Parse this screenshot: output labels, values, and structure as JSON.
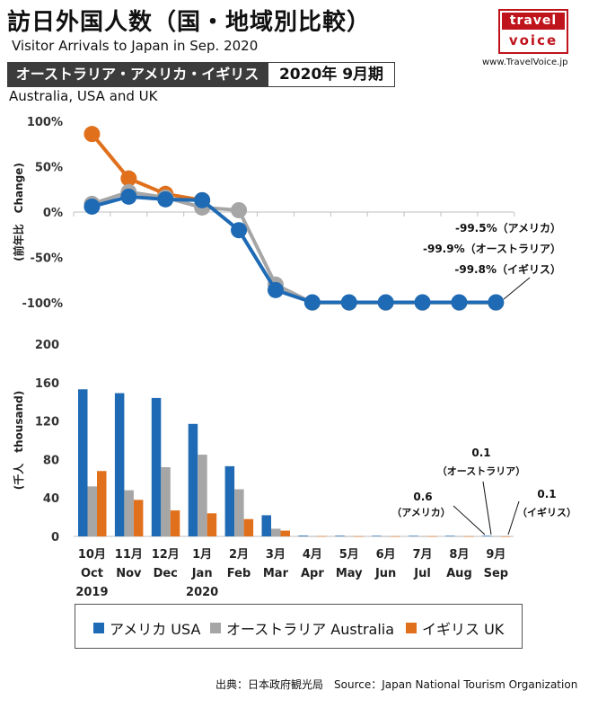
{
  "header": {
    "title": "訪日外国人数（国・地域別比較）",
    "subtitle": "Visitor Arrivals to Japan in Sep. 2020",
    "banner": "オーストラリア・アメリカ・イギリス",
    "period": "2020年 9月期",
    "region_en": "Australia, USA and UK",
    "logo_top": "travel",
    "logo_bottom": "voice",
    "website": "www.TravelVoice.jp"
  },
  "source": "出典：日本政府観光局　Source：Japan National Tourism Organization",
  "colors": {
    "usa": "#1e6ab4",
    "australia": "#a6a6a6",
    "uk": "#e0701c"
  },
  "chart_data": [
    {
      "type": "line",
      "ylabel": "(前年比　Change)",
      "ylim": [
        -100,
        100
      ],
      "yticks": [
        "100%",
        "50%",
        "0%",
        "-50%",
        "-100%"
      ],
      "x": [
        "10月 Oct 2019",
        "11月 Nov",
        "12月 Dec",
        "1月 Jan 2020",
        "2月 Feb",
        "3月 Mar",
        "4月 Apr",
        "5月 May",
        "6月 Jun",
        "7月 Jul",
        "8月 Aug",
        "9月 Sep"
      ],
      "series": [
        {
          "name": "イギリス UK",
          "key": "uk",
          "values": [
            86,
            37,
            20,
            13,
            null,
            null,
            null,
            null,
            null,
            null,
            null,
            null
          ]
        },
        {
          "name": "オーストラリア Australia",
          "key": "australia",
          "values": [
            9,
            22,
            16,
            5,
            2,
            -80,
            -99.9,
            -99.9,
            -99.9,
            -99.9,
            -99.9,
            -99.9
          ]
        },
        {
          "name": "アメリカ USA",
          "key": "usa",
          "values": [
            6,
            17,
            14,
            13,
            -20,
            -86,
            -99.5,
            -99.5,
            -99.5,
            -99.5,
            -99.5,
            -99.5
          ]
        }
      ],
      "annotations": [
        "-99.5%（アメリカ）",
        "-99.9%（オーストラリア）",
        "-99.8%（イギリス）"
      ]
    },
    {
      "type": "bar",
      "ylabel": "(千人　thousand)",
      "ylim": [
        0,
        200
      ],
      "yticks": [
        "200",
        "160",
        "120",
        "80",
        "40",
        "0"
      ],
      "categories": [
        {
          "month": "10月",
          "en": "Oct",
          "year": "2019"
        },
        {
          "month": "11月",
          "en": "Nov",
          "year": ""
        },
        {
          "month": "12月",
          "en": "Dec",
          "year": ""
        },
        {
          "month": "1月",
          "en": "Jan",
          "year": "2020"
        },
        {
          "month": "2月",
          "en": "Feb",
          "year": ""
        },
        {
          "month": "3月",
          "en": "Mar",
          "year": ""
        },
        {
          "month": "4月",
          "en": "Apr",
          "year": ""
        },
        {
          "month": "5月",
          "en": "May",
          "year": ""
        },
        {
          "month": "6月",
          "en": "Jun",
          "year": ""
        },
        {
          "month": "7月",
          "en": "Jul",
          "year": ""
        },
        {
          "month": "8月",
          "en": "Aug",
          "year": ""
        },
        {
          "month": "9月",
          "en": "Sep",
          "year": ""
        }
      ],
      "series": [
        {
          "name": "アメリカ USA",
          "key": "usa",
          "values": [
            153,
            149,
            144,
            117,
            73,
            22,
            0.8,
            0.7,
            0.6,
            0.6,
            0.6,
            0.6
          ]
        },
        {
          "name": "オーストラリア Australia",
          "key": "australia",
          "values": [
            52,
            48,
            72,
            85,
            49,
            8,
            0.2,
            0.1,
            0.1,
            0.1,
            0.1,
            0.1
          ]
        },
        {
          "name": "イギリス UK",
          "key": "uk",
          "values": [
            68,
            38,
            27,
            24,
            18,
            6,
            0.3,
            0.2,
            0.2,
            0.2,
            0.2,
            0.1
          ]
        }
      ],
      "annotations": [
        {
          "value": "0.1",
          "label": "（オーストラリア）"
        },
        {
          "value": "0.6",
          "label": "（アメリカ）"
        },
        {
          "value": "0.1",
          "label": "（イギリス）"
        }
      ]
    }
  ],
  "legend": [
    {
      "label": "アメリカ USA",
      "key": "usa"
    },
    {
      "label": "オーストラリア Australia",
      "key": "australia"
    },
    {
      "label": "イギリス UK",
      "key": "uk"
    }
  ]
}
